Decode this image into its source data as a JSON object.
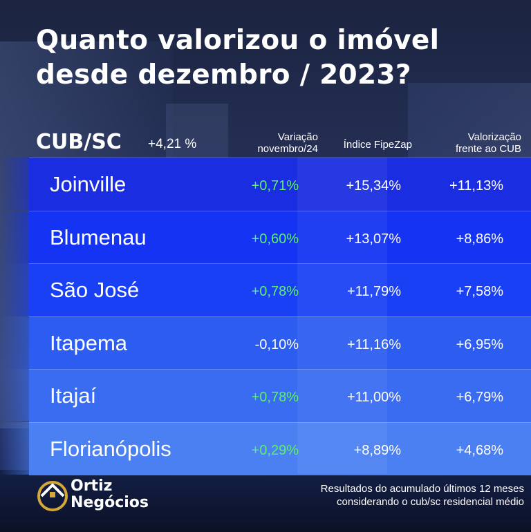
{
  "title": {
    "line1": "Quanto valorizou o imóvel",
    "line2": "desde dezembro / 2023?"
  },
  "cub": {
    "label": "CUB/SC",
    "value": "+4,21 %"
  },
  "columns": {
    "variacao_line1": "Variação",
    "variacao_line2": "novembro/24",
    "fipezap": "Índice FipeZap",
    "valorizacao_line1": "Valorização",
    "valorizacao_line2": "frente ao CUB"
  },
  "rows": [
    {
      "city": "Joinville",
      "variacao": "+0,71%",
      "fipezap": "+15,34%",
      "valorizacao": "+11,13%",
      "bg": "#1a2de0"
    },
    {
      "city": "Blumenau",
      "variacao": "+0,60%",
      "fipezap": "+13,07%",
      "valorizacao": "+8,86%",
      "bg": "#1433f2"
    },
    {
      "city": "São José",
      "variacao": "+0,78%",
      "fipezap": "+11,79%",
      "valorizacao": "+7,58%",
      "bg": "#1a40f5"
    },
    {
      "city": "Itapema",
      "variacao": "-0,10%",
      "fipezap": "+11,16%",
      "valorizacao": "+6,95%",
      "bg": "#2d5df0"
    },
    {
      "city": "Itajaí",
      "variacao": "+0,78%",
      "fipezap": "+11,00%",
      "valorizacao": "+6,79%",
      "bg": "#3a6cf2"
    },
    {
      "city": "Florianópolis",
      "variacao": "+0,29%",
      "fipezap": "+8,89%",
      "valorizacao": "+4,68%",
      "bg": "#4a80f2"
    }
  ],
  "colors": {
    "positive": "#5df06a",
    "neutral": "#ffffff"
  },
  "logo": {
    "line1": "Ortiz",
    "line2": "Negócios",
    "icon": "house-roof-icon"
  },
  "footnote": {
    "line1": "Resultados do acumulado últimos 12 meses",
    "line2": "considerando o cub/sc residencial médio"
  }
}
